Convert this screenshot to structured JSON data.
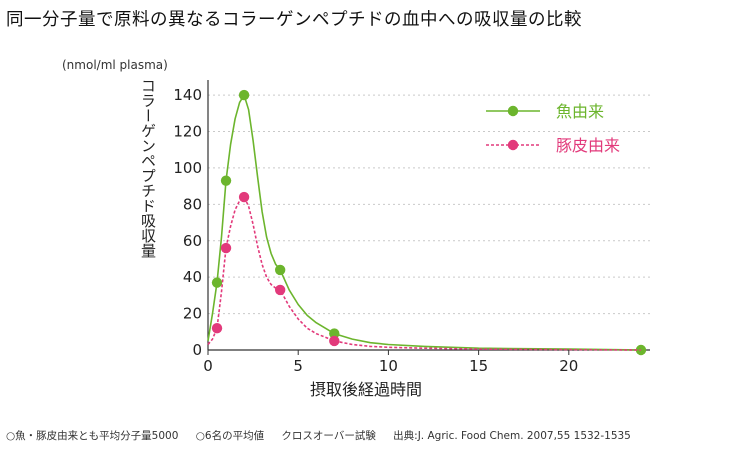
{
  "title": "同一分子量で原料の異なるコラーゲンペプチドの血中への吸収量の比較",
  "footnote": {
    "note1": "○魚・豚皮由来とも平均分子量5000",
    "note2": "○6名の平均値",
    "note3": "クロスオーバー試験",
    "source": "出典:J. Agric. Food Chem. 2007,55 1532-1535"
  },
  "colors": {
    "fish": "#6cb52d",
    "pig": "#e23a7b",
    "grid": "#c9c9c9",
    "axis": "#333333"
  },
  "chart_data": {
    "type": "line",
    "title": "同一分子量で原料の異なるコラーゲンペプチドの血中への吸収量の比較",
    "xlabel": "摂取後経過時間",
    "ylabel": "コラーゲンペプチド吸収量",
    "yunit": "(nmol/ml plasma)",
    "xlim": [
      0,
      24.5
    ],
    "ylim": [
      0,
      145
    ],
    "xticks": [
      "0",
      "5",
      "10",
      "15",
      "20"
    ],
    "yticks": [
      "0",
      "20",
      "40",
      "60",
      "80",
      "100",
      "120",
      "140"
    ],
    "grid": true,
    "legend_position": "top-right",
    "series": [
      {
        "name": "魚由来",
        "style": "solid",
        "x": [
          0.5,
          1,
          2,
          4,
          7,
          24
        ],
        "y": [
          37,
          93,
          140,
          44,
          9,
          0
        ],
        "curve_x": [
          0,
          0.25,
          0.5,
          0.75,
          1,
          1.25,
          1.5,
          1.75,
          2,
          2.25,
          2.5,
          2.75,
          3,
          3.25,
          3.5,
          3.75,
          4,
          4.5,
          5,
          5.5,
          6,
          7,
          8,
          9,
          10,
          12,
          15,
          20,
          24
        ],
        "curve_y": [
          5,
          20,
          37,
          62,
          93,
          113,
          127,
          136,
          140,
          132,
          115,
          95,
          76,
          62,
          53,
          47,
          44,
          33,
          25,
          19,
          15,
          9,
          6,
          4,
          3,
          2,
          1,
          0.5,
          0
        ]
      },
      {
        "name": "豚皮由来",
        "style": "dashed",
        "x": [
          0.5,
          1,
          2,
          4,
          7
        ],
        "y": [
          12,
          56,
          84,
          33,
          5
        ],
        "curve_x": [
          0,
          0.25,
          0.5,
          0.75,
          1,
          1.25,
          1.5,
          1.75,
          2,
          2.25,
          2.5,
          2.75,
          3,
          3.25,
          3.5,
          3.75,
          4,
          4.5,
          5,
          5.5,
          6,
          7,
          8,
          9,
          10,
          12,
          15,
          20,
          24
        ],
        "curve_y": [
          3,
          6,
          12,
          32,
          56,
          68,
          77,
          82,
          84,
          79,
          69,
          57,
          47,
          40,
          36,
          34,
          33,
          24,
          17,
          12,
          9,
          5,
          3,
          2,
          1.5,
          1,
          0.5,
          0.2,
          0
        ]
      }
    ]
  }
}
